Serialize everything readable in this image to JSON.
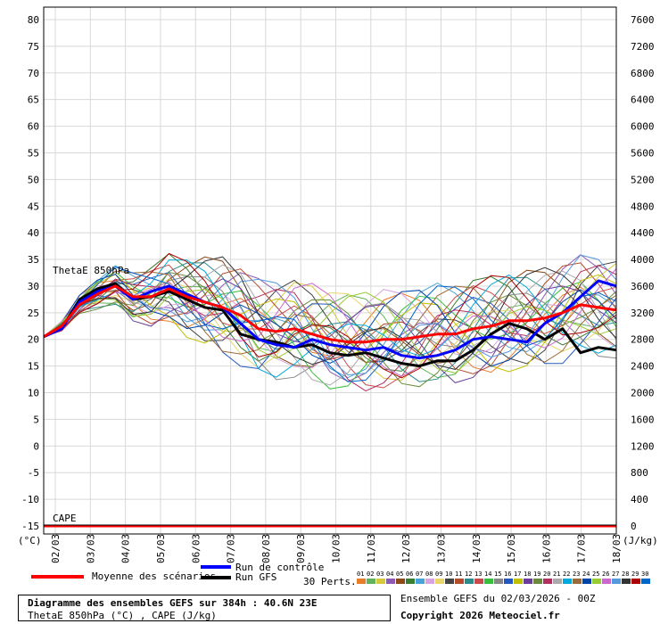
{
  "chart_data": {
    "type": "line",
    "left_axis": {
      "label": "(°C)",
      "min": -15,
      "max": 80,
      "ticks": [
        -15,
        -10,
        -5,
        0,
        5,
        10,
        15,
        20,
        25,
        30,
        35,
        40,
        45,
        50,
        55,
        60,
        65,
        70,
        75,
        80
      ]
    },
    "right_axis": {
      "label": "(J/kg)",
      "min": 0,
      "max": 7600,
      "ticks": [
        0,
        400,
        800,
        1200,
        1600,
        2000,
        2400,
        2800,
        3200,
        3600,
        4000,
        4400,
        4800,
        5200,
        5600,
        6000,
        6400,
        6800,
        7200,
        7600
      ]
    },
    "x_range": [
      0,
      384
    ],
    "x_tick_labels": [
      "02/03",
      "03/03",
      "04/03",
      "05/03",
      "06/03",
      "07/03",
      "08/03",
      "09/03",
      "10/03",
      "11/03",
      "12/03",
      "13/03",
      "14/03",
      "15/03",
      "16/03",
      "17/03",
      "18/03"
    ],
    "thetae_label": "ThetaE 850hPa",
    "cape_label": "CAPE",
    "mean": {
      "name": "Moyenne des scénarios",
      "color": "#ff0000",
      "x": [
        0,
        12,
        24,
        36,
        48,
        60,
        72,
        84,
        96,
        108,
        120,
        132,
        144,
        156,
        168,
        180,
        192,
        204,
        216,
        228,
        240,
        252,
        264,
        276,
        288,
        300,
        312,
        324,
        336,
        348,
        360,
        372,
        384
      ],
      "y": [
        20.5,
        22.5,
        26.5,
        28.5,
        30,
        28,
        28,
        29.5,
        28,
        27,
        26,
        24.5,
        22,
        21.5,
        22,
        21,
        20,
        19.5,
        19.5,
        20,
        20,
        20.5,
        21,
        21,
        22,
        22.5,
        23.5,
        23.5,
        24,
        25,
        26.5,
        26,
        25.5
      ]
    },
    "control": {
      "name": "Run de contrôle",
      "color": "#0000ff",
      "x": [
        0,
        12,
        24,
        36,
        48,
        60,
        72,
        84,
        96,
        108,
        120,
        132,
        144,
        156,
        168,
        180,
        192,
        204,
        216,
        228,
        240,
        252,
        264,
        276,
        288,
        300,
        312,
        324,
        336,
        348,
        360,
        372,
        384
      ],
      "y": [
        20.5,
        22,
        27,
        29,
        30,
        27.5,
        29,
        30,
        28.5,
        27,
        26,
        23,
        20,
        19,
        18.5,
        20,
        19,
        18.5,
        18,
        18.5,
        17,
        16.5,
        17,
        18,
        20,
        20.5,
        20,
        19.5,
        23,
        25,
        28,
        31,
        30
      ]
    },
    "gfs": {
      "name": "Run GFS",
      "color": "#000000",
      "x": [
        0,
        12,
        24,
        36,
        48,
        60,
        72,
        84,
        96,
        108,
        120,
        132,
        144,
        156,
        168,
        180,
        192,
        204,
        216,
        228,
        240,
        252,
        264,
        276,
        288,
        300,
        312,
        324,
        336,
        348,
        360,
        372,
        384
      ],
      "y": [
        20.5,
        22,
        27.5,
        29.5,
        30.5,
        27.5,
        28,
        29,
        27.5,
        26,
        25.5,
        21,
        20,
        19.5,
        18.5,
        19,
        17.5,
        17,
        17.5,
        16.5,
        15.5,
        15,
        16,
        16,
        18,
        21,
        23,
        22,
        20,
        22,
        17.5,
        18.5,
        18
      ]
    },
    "perturbations_label": "30 Perts.",
    "perturbation_numbers": [
      "01",
      "02",
      "03",
      "04",
      "05",
      "06",
      "07",
      "08",
      "09",
      "10",
      "11",
      "12",
      "13",
      "14",
      "15",
      "16",
      "17",
      "18",
      "19",
      "20",
      "21",
      "22",
      "23",
      "24",
      "25",
      "26",
      "27",
      "28",
      "29",
      "30"
    ],
    "perturbation_colors": [
      "#e87d2a",
      "#63b35c",
      "#d6c93a",
      "#8d5bb3",
      "#8b4a18",
      "#3a7d33",
      "#4aa3d8",
      "#d8a4e0",
      "#e8d66a",
      "#444444",
      "#b54b2c",
      "#2a8c8c",
      "#c94a4a",
      "#38c038",
      "#888888",
      "#2458c0",
      "#c0c000",
      "#6a3d9a",
      "#6a8c3a",
      "#b03060",
      "#aaaaaa",
      "#00aadd",
      "#9b6b3a",
      "#0044aa",
      "#99cc33",
      "#cc66cc",
      "#5599dd",
      "#333333",
      "#aa0000",
      "#0066cc"
    ]
  },
  "footer": {
    "title": "Diagramme des ensembles GEFS sur 384h : 40.6N 23E",
    "subtitle": "ThetaE 850hPa (°C) , CAPE (J/kg)",
    "ensemble_date": "Ensemble GEFS du 02/03/2026 - 00Z",
    "copyright": "Copyright 2026 Meteociel.fr"
  }
}
